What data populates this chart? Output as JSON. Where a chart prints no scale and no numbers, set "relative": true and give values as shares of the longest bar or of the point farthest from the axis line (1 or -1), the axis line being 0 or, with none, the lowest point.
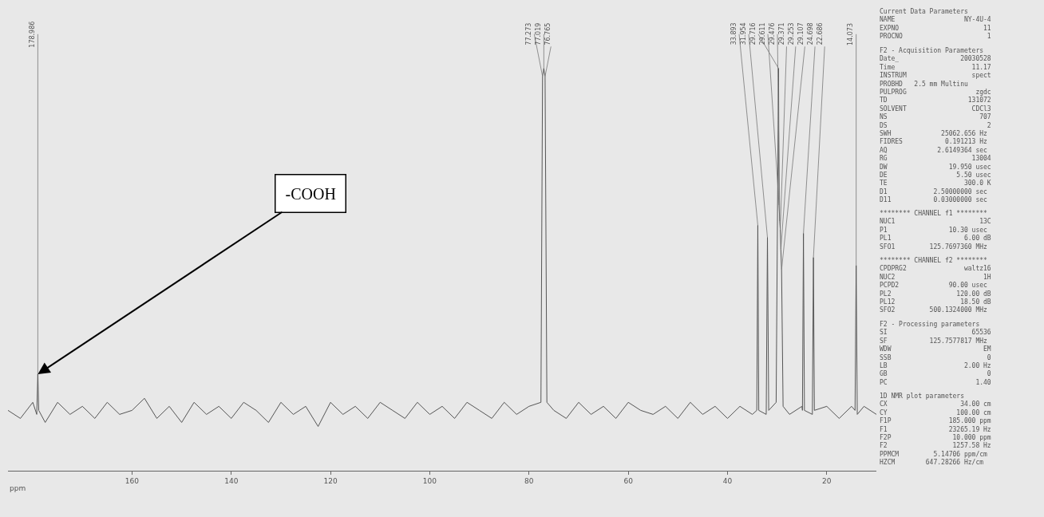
{
  "chart_data": {
    "type": "line",
    "relative": true,
    "xlabel": "ppm",
    "xlim": [
      185,
      10
    ],
    "xticks": [
      160,
      140,
      120,
      100,
      80,
      60,
      40,
      20
    ],
    "x": [
      185,
      182.5,
      180,
      179.2,
      178.986,
      178.8,
      177.5,
      175,
      172.5,
      170,
      167.5,
      165,
      162.5,
      160,
      157.5,
      155,
      152.5,
      150,
      147.5,
      145,
      142.5,
      140,
      137.5,
      135,
      132.5,
      130,
      127.5,
      125,
      122.5,
      120,
      117.5,
      115,
      112.5,
      110,
      107.5,
      105,
      102.5,
      100,
      97.5,
      95,
      92.5,
      90,
      87.5,
      85,
      82.5,
      80,
      77.6,
      77.273,
      77.019,
      76.765,
      76.4,
      75,
      72.5,
      70,
      67.5,
      65,
      62.5,
      60,
      57.5,
      55,
      52.5,
      50,
      47.5,
      45,
      42.5,
      40,
      37.5,
      35,
      34.1,
      33.893,
      33.7,
      32.2,
      31.954,
      31.7,
      30.2,
      29.716,
      29.611,
      29.476,
      29.371,
      29.253,
      29.107,
      28.8,
      27.5,
      25,
      24.9,
      24.698,
      24.5,
      22.9,
      22.686,
      22.5,
      20,
      17.5,
      15,
      14.3,
      14.073,
      13.85,
      12.5,
      10
    ],
    "series": [
      {
        "color": "#555555",
        "values": [
          0.15,
          0.13,
          0.17,
          0.14,
          0.24,
          0.15,
          0.12,
          0.17,
          0.14,
          0.16,
          0.13,
          0.17,
          0.14,
          0.15,
          0.18,
          0.13,
          0.16,
          0.12,
          0.17,
          0.14,
          0.16,
          0.13,
          0.17,
          0.15,
          0.12,
          0.17,
          0.14,
          0.16,
          0.11,
          0.17,
          0.14,
          0.16,
          0.13,
          0.17,
          0.15,
          0.13,
          0.17,
          0.14,
          0.16,
          0.13,
          0.17,
          0.15,
          0.13,
          0.17,
          0.14,
          0.16,
          0.17,
          0.98,
          1.0,
          0.98,
          0.17,
          0.15,
          0.13,
          0.17,
          0.14,
          0.16,
          0.13,
          0.17,
          0.15,
          0.14,
          0.16,
          0.13,
          0.17,
          0.14,
          0.16,
          0.13,
          0.16,
          0.14,
          0.15,
          0.61,
          0.15,
          0.14,
          0.58,
          0.15,
          0.17,
          1.0,
          0.66,
          0.62,
          0.6,
          0.55,
          0.5,
          0.16,
          0.14,
          0.16,
          0.15,
          0.59,
          0.15,
          0.14,
          0.53,
          0.15,
          0.16,
          0.13,
          0.16,
          0.15,
          0.51,
          0.14,
          0.16,
          0.14
        ]
      }
    ],
    "annotations": [
      {
        "text": "178.986",
        "x": 178.986,
        "y": 0.24
      },
      {
        "text": "77.273",
        "x": 77.273,
        "y": 0.98
      },
      {
        "text": "77.019",
        "x": 77.019,
        "y": 1.0
      },
      {
        "text": "76.765",
        "x": 76.765,
        "y": 0.98
      },
      {
        "text": "33.893",
        "x": 33.893,
        "y": 0.61
      },
      {
        "text": "31.954",
        "x": 31.954,
        "y": 0.58
      },
      {
        "text": "29.716",
        "x": 29.716,
        "y": 1.0
      },
      {
        "text": "29.611",
        "x": 29.611,
        "y": 0.66
      },
      {
        "text": "29.476",
        "x": 29.476,
        "y": 0.62
      },
      {
        "text": "29.371",
        "x": 29.371,
        "y": 0.6
      },
      {
        "text": "29.253",
        "x": 29.253,
        "y": 0.55
      },
      {
        "text": "29.107",
        "x": 29.107,
        "y": 0.5
      },
      {
        "text": "24.698",
        "x": 24.698,
        "y": 0.59
      },
      {
        "text": "22.686",
        "x": 22.686,
        "y": 0.53
      },
      {
        "text": "14.073",
        "x": 14.073,
        "y": 0.51
      },
      {
        "text": "-COOH",
        "x": 178.986,
        "y": 0.24
      },
      "Current Data Parameters\nNAME                  NY-4U-4\nEXPNO                      11\nPROCNO                      1",
      "F2 - Acquisition Parameters\nDate_                20030528\nTime                    11.17\nINSTRUM                 spect\nPROBHD   2.5 mm Multinu\nPULPROG                  zgdc\nTD                     131072\nSOLVENT                 CDCl3\nNS                        707\nDS                          2\nSWH             25062.656 Hz\nFIDRES           0.191213 Hz\nAQ             2.6149364 sec\nRG                      13004\nDW                19.950 usec\nDE                  5.50 usec\nTE                    300.0 K\nD1            2.50000000 sec\nD11           0.03000000 sec",
      "******** CHANNEL f1 ********\nNUC1                      13C\nP1                10.30 usec\nPL1                   6.00 dB\nSFO1         125.7697360 MHz",
      "******** CHANNEL f2 ********\nCPDPRG2               waltz16\nNUC2                       1H\nPCPD2             90.00 usec\nPL2                 120.00 dB\nPL12                 18.50 dB\nSFO2         500.1324000 MHz",
      "F2 - Processing parameters\nSI                      65536\nSF           125.7577817 MHz\nWDW                        EM\nSSB                         0\nLB                    2.00 Hz\nGB                          0\nPC                       1.40",
      "1D NMR plot parameters\nCX                   34.00 cm\nCY                  100.00 cm\nF1P               185.000 ppm\nF1                23265.19 Hz\nF2P                10.000 ppm\nF2                 1257.58 Hz\nPPMCM         5.14706 ppm/cm\nHZCM        647.28266 Hz/cm"
    ]
  }
}
